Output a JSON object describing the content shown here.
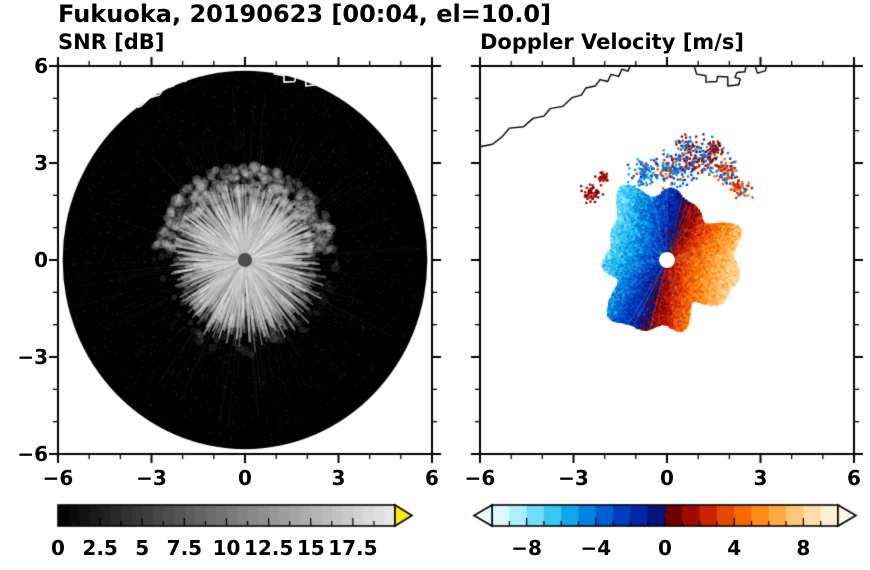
{
  "header": {
    "title": "Fukuoka, 20190623 [00:04, el=10.0]"
  },
  "panels": [
    {
      "id": "snr",
      "title": "SNR [dB]",
      "xtick_labels": [
        "−6",
        "−3",
        "0",
        "3",
        "6"
      ],
      "ytick_labels": [
        "6",
        "3",
        "0",
        "−3",
        "−6"
      ],
      "colorbar_tick_labels": [
        "0",
        "2.5",
        "5",
        "7.5",
        "10",
        "12.5",
        "15",
        "17.5"
      ]
    },
    {
      "id": "doppler",
      "title": "Doppler Velocity [m/s]",
      "xtick_labels": [
        "−6",
        "−3",
        "0",
        "3",
        "6"
      ],
      "colorbar_tick_labels": [
        "−8",
        "−4",
        "0",
        "4",
        "8"
      ]
    }
  ],
  "chart_data": [
    {
      "type": "heatmap",
      "title": "SNR [dB]",
      "xlabel": "",
      "ylabel": "",
      "xlim": [
        -6,
        6
      ],
      "ylim": [
        -6,
        6
      ],
      "xticks": [
        -6,
        -3,
        0,
        3,
        6
      ],
      "yticks": [
        -6,
        -3,
        0,
        3,
        6
      ],
      "colorbar": {
        "range": [
          0,
          20
        ],
        "ticks": [
          0,
          2.5,
          5,
          7.5,
          10,
          12.5,
          15,
          17.5
        ],
        "colormap": [
          [
            0,
            "#000000"
          ],
          [
            20,
            "#ebebeb"
          ]
        ],
        "over_color": "#ffee00"
      },
      "content": {
        "scan_disk": {
          "center": [
            0,
            0
          ],
          "radius": 5.85,
          "color": "#000000",
          "meaning": "PPI radar scan coverage, background near 0 dB"
        },
        "echo": {
          "center": [
            0,
            0
          ],
          "core_radius": 2.2,
          "ring_radius": [
            2.05,
            2.9
          ],
          "snr_range_dB": [
            5,
            15
          ],
          "appearance": "grainy grayscale echo with bright radial streaks and a fuzzy brighter arc ring, strongest over the upper half"
        },
        "radar_dot": {
          "pos": [
            0,
            0
          ],
          "radius_px": 7,
          "color": "#4d4d4d"
        },
        "coastline_color": "#ffffff"
      }
    },
    {
      "type": "heatmap",
      "title": "Doppler Velocity [m/s]",
      "xlabel": "",
      "ylabel": "",
      "xlim": [
        -6,
        6
      ],
      "ylim": [
        -6,
        6
      ],
      "xticks": [
        -6,
        -3,
        0,
        3,
        6
      ],
      "yticks": [
        -6,
        -3,
        0,
        3,
        6
      ],
      "colorbar": {
        "range": [
          -10,
          10
        ],
        "ticks": [
          -8,
          -4,
          0,
          4,
          8
        ],
        "colormap": [
          [
            -10,
            "#edfdff"
          ],
          [
            -9,
            "#c8f4ff"
          ],
          [
            -8,
            "#8fe7ff"
          ],
          [
            -7,
            "#50d2f7"
          ],
          [
            -6,
            "#1fb9ef"
          ],
          [
            -5,
            "#0096e6"
          ],
          [
            -4,
            "#0070d8"
          ],
          [
            -3,
            "#004cc8"
          ],
          [
            -2,
            "#022eb4"
          ],
          [
            -1,
            "#021d96"
          ],
          [
            -0.05,
            "#020e5f"
          ],
          [
            0.05,
            "#570101"
          ],
          [
            1,
            "#8c0200"
          ],
          [
            2,
            "#b81200"
          ],
          [
            3,
            "#d93500"
          ],
          [
            4,
            "#ef5800"
          ],
          [
            5,
            "#ff7b00"
          ],
          [
            6,
            "#ff9c2a"
          ],
          [
            7,
            "#ffba5e"
          ],
          [
            8,
            "#ffd391"
          ],
          [
            9,
            "#ffe7c0"
          ],
          [
            10,
            "#fff6e8"
          ]
        ]
      },
      "content": {
        "velocity_blob": {
          "center": [
            0,
            0
          ],
          "radius": 2.3,
          "negative_side": "west-northwest, blue shades (flow toward radar, about -2 to -8 m/s)",
          "positive_side": "east-southeast, red-orange shades (flow away from radar, about +2 to +8 m/s)",
          "zero_isodop_azimuth_deg": 70,
          "max_abs_velocity_ms": 9
        },
        "speckle_clusters": "scattered blue/dark-red echo specks 2.5-3.5 km north and small dark-red aliased patches on the west edge",
        "radar_dot": {
          "pos": [
            0,
            0
          ],
          "radius_px": 8,
          "color": "#ffffff"
        },
        "coastline_color": "#000000"
      }
    }
  ],
  "coastline_segments": [
    [
      [
        -6,
        3.5
      ],
      [
        -5.6,
        3.58
      ],
      [
        -5.3,
        3.8
      ],
      [
        -5.05,
        4.08
      ],
      [
        -4.6,
        4.12
      ],
      [
        -4.3,
        4.38
      ],
      [
        -3.95,
        4.45
      ],
      [
        -3.75,
        4.68
      ],
      [
        -3.35,
        4.75
      ],
      [
        -3.05,
        5.02
      ],
      [
        -2.75,
        5.1
      ],
      [
        -2.6,
        5.32
      ],
      [
        -2.3,
        5.38
      ],
      [
        -2.15,
        5.58
      ],
      [
        -1.9,
        5.52
      ],
      [
        -1.8,
        5.74
      ],
      [
        -1.55,
        5.68
      ],
      [
        -1.45,
        5.9
      ],
      [
        -1.25,
        5.84
      ],
      [
        -1.15,
        6.08
      ]
    ],
    [
      [
        0.85,
        6.08
      ],
      [
        0.95,
        5.75
      ],
      [
        1.25,
        5.7
      ],
      [
        1.25,
        5.5
      ],
      [
        1.6,
        5.52
      ],
      [
        1.62,
        5.68
      ],
      [
        1.95,
        5.66
      ],
      [
        1.95,
        5.38
      ],
      [
        2.3,
        5.42
      ],
      [
        2.35,
        5.6
      ],
      [
        2.18,
        5.65
      ],
      [
        2.25,
        5.8
      ],
      [
        2.5,
        5.82
      ],
      [
        2.55,
        6.08
      ]
    ],
    [
      [
        2.8,
        6.08
      ],
      [
        2.9,
        5.78
      ],
      [
        3.15,
        5.85
      ],
      [
        3.22,
        6.08
      ]
    ]
  ]
}
